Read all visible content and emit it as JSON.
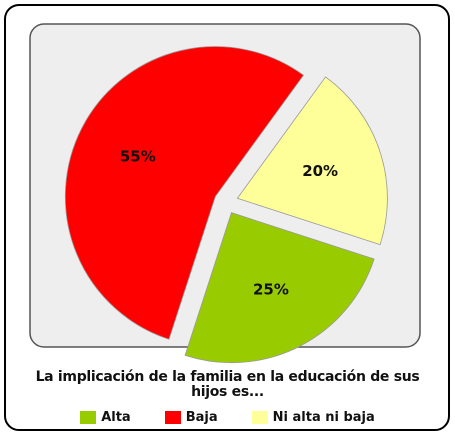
{
  "chart_data": {
    "type": "pie",
    "title": "La implicación de la familia en la educación de sus hijos es...",
    "categories": [
      "Alta",
      "Baja",
      "Ni alta ni baja"
    ],
    "values": [
      25,
      55,
      20
    ],
    "value_labels": [
      "25%",
      "55%",
      "20%"
    ],
    "colors": [
      "#99cc00",
      "#ff0000",
      "#ffff99"
    ],
    "legend": "bottom"
  }
}
